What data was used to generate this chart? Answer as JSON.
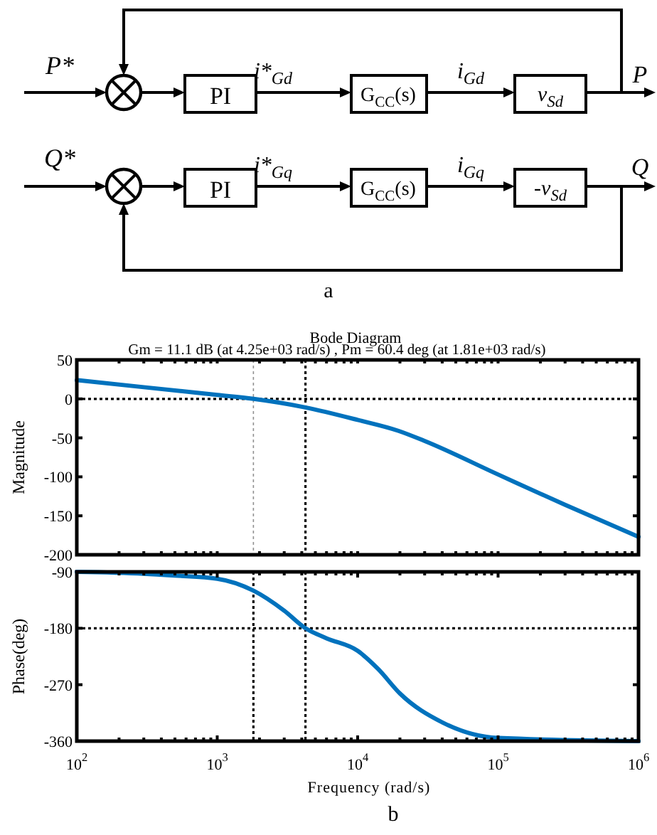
{
  "chart_data": [
    {
      "type": "other",
      "annotations": [
        "P*",
        "PI",
        "i*$_{Gd}$",
        "G$_{CC}$(s)",
        "i$_{Gd}$",
        "v$_{Sd}$",
        "P",
        "Q*",
        "PI",
        "i*$_{Gq}$",
        "G$_{CC}$(s)",
        "i$_{Gq}$",
        "-v$_{Sd}$",
        "Q",
        "a"
      ]
    },
    {
      "type": "line",
      "title": "Bode Diagram",
      "subtitle": "Gm = 11.1 dB (at 4.25e+03 rad/s) ,  Pm = 60.4 deg (at 1.81e+03 rad/s)",
      "ylabel": "Magnitude",
      "log": "x",
      "grid": false,
      "tick_labels": "y",
      "x": [
        100,
        300,
        1000,
        1810,
        4250,
        10000,
        19500,
        30000,
        100000,
        300000,
        1000000
      ],
      "series": [
        {
          "color": "#0072bd",
          "values": [
            24,
            15,
            5,
            0,
            -11,
            -27,
            -41,
            -54,
            -97,
            -136,
            -177
          ]
        }
      ],
      "xlim": [
        100,
        1000000
      ],
      "ylim": [
        -200,
        50
      ],
      "yticks": [
        -200,
        -150,
        -100,
        -50,
        0,
        50
      ],
      "xticks": [
        {
          "value": 100,
          "label": null
        },
        {
          "value": 200,
          "label": null
        },
        {
          "value": 300,
          "label": null
        },
        {
          "value": 400,
          "label": null
        },
        {
          "value": 500,
          "label": null
        },
        {
          "value": 600,
          "label": null
        },
        {
          "value": 700,
          "label": null
        },
        {
          "value": 800,
          "label": null
        },
        {
          "value": 900,
          "label": null
        },
        {
          "value": 1000,
          "label": null
        },
        {
          "value": 2000,
          "label": null
        },
        {
          "value": 3000,
          "label": null
        },
        {
          "value": 4000,
          "label": null
        },
        {
          "value": 5000,
          "label": null
        },
        {
          "value": 6000,
          "label": null
        },
        {
          "value": 7000,
          "label": null
        },
        {
          "value": 8000,
          "label": null
        },
        {
          "value": 9000,
          "label": null
        },
        {
          "value": 10000,
          "label": null
        },
        {
          "value": 20000,
          "label": null
        },
        {
          "value": 30000,
          "label": null
        },
        {
          "value": 40000,
          "label": null
        },
        {
          "value": 50000,
          "label": null
        },
        {
          "value": 60000,
          "label": null
        },
        {
          "value": 70000,
          "label": null
        },
        {
          "value": 80000,
          "label": null
        },
        {
          "value": 90000,
          "label": null
        },
        {
          "value": 100000,
          "label": null
        },
        {
          "value": 200000,
          "label": null
        },
        {
          "value": 300000,
          "label": null
        },
        {
          "value": 400000,
          "label": null
        },
        {
          "value": 500000,
          "label": null
        },
        {
          "value": 600000,
          "label": null
        },
        {
          "value": 700000,
          "label": null
        },
        {
          "value": 800000,
          "label": null
        },
        {
          "value": 900000,
          "label": null
        },
        {
          "value": 1000000,
          "label": null
        }
      ],
      "ref_lines": [
        {
          "axis": "y",
          "value": 0,
          "color": "#000000",
          "line_style": "dotted"
        },
        {
          "axis": "x",
          "value": 1810,
          "color": "#909090",
          "line_style": "dotted"
        },
        {
          "axis": "x",
          "value": 4250,
          "color": "#000000",
          "line_style": "dotted"
        }
      ]
    },
    {
      "type": "line",
      "ylabel": "Phase(deg)",
      "xlabel": "Frequency  (rad/s)",
      "log": "x",
      "grid": false,
      "x": [
        100,
        300,
        500,
        1000,
        1810,
        3000,
        4250,
        6000,
        10000,
        14000,
        20000,
        40000,
        100000,
        1000000
      ],
      "series": [
        {
          "color": "#0072bd",
          "values": [
            -90,
            -93,
            -96,
            -101,
            -120,
            -152,
            -180,
            -196,
            -216,
            -245,
            -284,
            -330,
            -355,
            -360
          ]
        }
      ],
      "xlim": [
        100,
        1000000
      ],
      "ylim": [
        -360,
        -90
      ],
      "yticks": [
        -360,
        -270,
        -180,
        -90
      ],
      "xticks": [
        {
          "value": 100,
          "label": "10$^{2}$"
        },
        {
          "value": 200,
          "label": null
        },
        {
          "value": 300,
          "label": null
        },
        {
          "value": 400,
          "label": null
        },
        {
          "value": 500,
          "label": null
        },
        {
          "value": 600,
          "label": null
        },
        {
          "value": 700,
          "label": null
        },
        {
          "value": 800,
          "label": null
        },
        {
          "value": 900,
          "label": null
        },
        {
          "value": 1000,
          "label": "10$^{3}$"
        },
        {
          "value": 2000,
          "label": null
        },
        {
          "value": 3000,
          "label": null
        },
        {
          "value": 4000,
          "label": null
        },
        {
          "value": 5000,
          "label": null
        },
        {
          "value": 6000,
          "label": null
        },
        {
          "value": 7000,
          "label": null
        },
        {
          "value": 8000,
          "label": null
        },
        {
          "value": 9000,
          "label": null
        },
        {
          "value": 10000,
          "label": "10$^{4}$"
        },
        {
          "value": 20000,
          "label": null
        },
        {
          "value": 30000,
          "label": null
        },
        {
          "value": 40000,
          "label": null
        },
        {
          "value": 50000,
          "label": null
        },
        {
          "value": 60000,
          "label": null
        },
        {
          "value": 70000,
          "label": null
        },
        {
          "value": 80000,
          "label": null
        },
        {
          "value": 90000,
          "label": null
        },
        {
          "value": 100000,
          "label": "10$^{5}$"
        },
        {
          "value": 200000,
          "label": null
        },
        {
          "value": 300000,
          "label": null
        },
        {
          "value": 400000,
          "label": null
        },
        {
          "value": 500000,
          "label": null
        },
        {
          "value": 600000,
          "label": null
        },
        {
          "value": 700000,
          "label": null
        },
        {
          "value": 800000,
          "label": null
        },
        {
          "value": 900000,
          "label": null
        },
        {
          "value": 1000000,
          "label": "10$^{6}$"
        }
      ],
      "ref_lines": [
        {
          "axis": "y",
          "value": -180,
          "color": "#000000",
          "line_style": "dotted"
        },
        {
          "axis": "x",
          "value": 1810,
          "color": "#000000",
          "line_style": "dotted"
        },
        {
          "axis": "x",
          "value": 4250,
          "color": "#000000",
          "line_style": "dotted"
        }
      ],
      "annotations": [
        "b"
      ]
    }
  ]
}
